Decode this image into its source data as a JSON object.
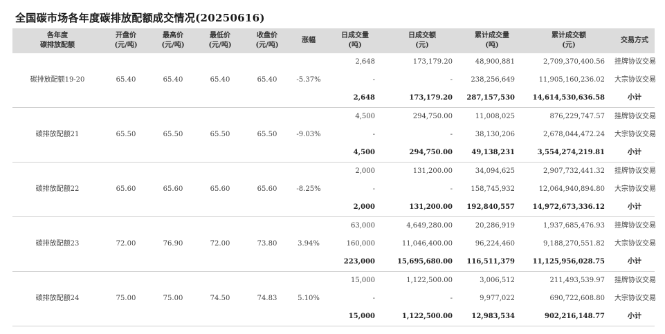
{
  "title": "全国碳市场各年度碳排放配额成交情况(20250616)",
  "headers": [
    "各年度\n碳排放配额",
    "开盘价\n(元/吨)",
    "最高价\n(元/吨)",
    "最低价\n(元/吨)",
    "收盘价\n(元/吨)",
    "涨幅",
    "日成交量\n(吨)",
    "日成交额\n(元)",
    "累计成交量\n(吨)",
    "累计成交额\n(元)",
    "交易方式"
  ],
  "groups": [
    {
      "name": "碳排放配额19-20",
      "open": "65.40",
      "high": "65.40",
      "low": "65.40",
      "close": "65.40",
      "change": "-5.37%",
      "rows": [
        {
          "vol": "2,648",
          "amt": "173,179.20",
          "cvol": "48,900,881",
          "camt": "2,709,370,400.56",
          "method": "挂牌协议交易"
        },
        {
          "vol": "-",
          "amt": "-",
          "cvol": "238,256,649",
          "camt": "11,905,160,236.02",
          "method": "大宗协议交易"
        },
        {
          "vol": "2,648",
          "amt": "173,179.20",
          "cvol": "287,157,530",
          "camt": "14,614,530,636.58",
          "method": "小计"
        }
      ]
    },
    {
      "name": "碳排放配额21",
      "open": "65.50",
      "high": "65.50",
      "low": "65.50",
      "close": "65.50",
      "change": "-9.03%",
      "rows": [
        {
          "vol": "4,500",
          "amt": "294,750.00",
          "cvol": "11,008,025",
          "camt": "876,229,747.57",
          "method": "挂牌协议交易"
        },
        {
          "vol": "-",
          "amt": "-",
          "cvol": "38,130,206",
          "camt": "2,678,044,472.24",
          "method": "大宗协议交易"
        },
        {
          "vol": "4,500",
          "amt": "294,750.00",
          "cvol": "49,138,231",
          "camt": "3,554,274,219.81",
          "method": "小计"
        }
      ]
    },
    {
      "name": "碳排放配额22",
      "open": "65.60",
      "high": "65.60",
      "low": "65.60",
      "close": "65.60",
      "change": "-8.25%",
      "rows": [
        {
          "vol": "2,000",
          "amt": "131,200.00",
          "cvol": "34,094,625",
          "camt": "2,907,732,441.32",
          "method": "挂牌协议交易"
        },
        {
          "vol": "-",
          "amt": "-",
          "cvol": "158,745,932",
          "camt": "12,064,940,894.80",
          "method": "大宗协议交易"
        },
        {
          "vol": "2,000",
          "amt": "131,200.00",
          "cvol": "192,840,557",
          "camt": "14,972,673,336.12",
          "method": "小计"
        }
      ]
    },
    {
      "name": "碳排放配额23",
      "open": "72.00",
      "high": "76.90",
      "low": "72.00",
      "close": "73.80",
      "change": "3.94%",
      "rows": [
        {
          "vol": "63,000",
          "amt": "4,649,280.00",
          "cvol": "20,286,919",
          "camt": "1,937,685,476.93",
          "method": "挂牌协议交易"
        },
        {
          "vol": "160,000",
          "amt": "11,046,400.00",
          "cvol": "96,224,460",
          "camt": "9,188,270,551.82",
          "method": "大宗协议交易"
        },
        {
          "vol": "223,000",
          "amt": "15,695,680.00",
          "cvol": "116,511,379",
          "camt": "11,125,956,028.75",
          "method": "小计"
        }
      ]
    },
    {
      "name": "碳排放配额24",
      "open": "75.00",
      "high": "75.00",
      "low": "74.50",
      "close": "74.83",
      "change": "5.10%",
      "rows": [
        {
          "vol": "15,000",
          "amt": "1,122,500.00",
          "cvol": "3,006,512",
          "camt": "211,493,539.97",
          "method": "挂牌协议交易"
        },
        {
          "vol": "-",
          "amt": "-",
          "cvol": "9,977,022",
          "camt": "690,722,608.80",
          "method": "大宗协议交易"
        },
        {
          "vol": "15,000",
          "amt": "1,122,500.00",
          "cvol": "12,983,534",
          "camt": "902,216,148.77",
          "method": "小计"
        }
      ]
    }
  ]
}
